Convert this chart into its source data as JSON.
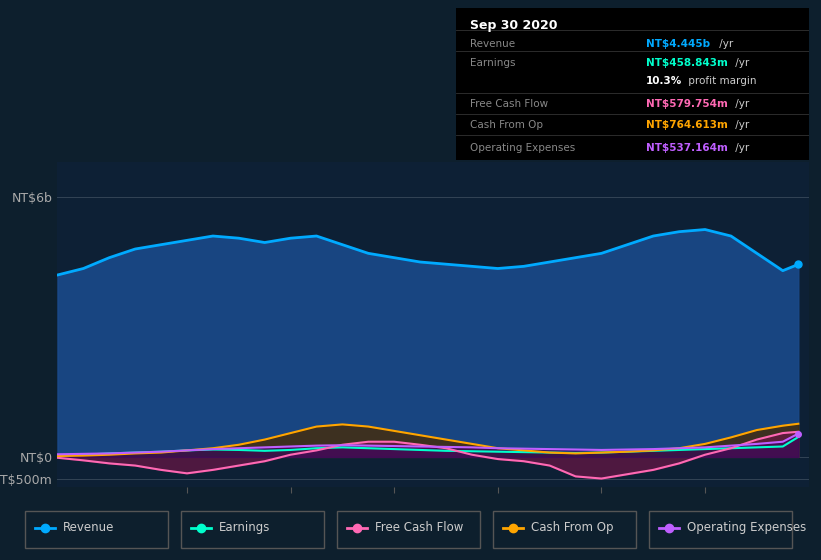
{
  "background_color": "#0d1f2d",
  "plot_bg_color": "#0d2035",
  "title_box": {
    "date": "Sep 30 2020",
    "bg_color": "#000000",
    "text_color": "#aaaaaa",
    "title_color": "#ffffff"
  },
  "y_labels": [
    "NT$6b",
    "NT$0",
    "-NT$500m"
  ],
  "y_ticks": [
    6000,
    0,
    -500
  ],
  "ylim": [
    -700,
    6800
  ],
  "x_ticks": [
    2015,
    2016,
    2017,
    2018,
    2019,
    2020
  ],
  "xlim_start": 2013.75,
  "xlim_end": 2021.0,
  "legend": [
    {
      "label": "Revenue",
      "color": "#00aaff"
    },
    {
      "label": "Earnings",
      "color": "#00ffcc"
    },
    {
      "label": "Free Cash Flow",
      "color": "#ff69b4"
    },
    {
      "label": "Cash From Op",
      "color": "#ffa500"
    },
    {
      "label": "Operating Expenses",
      "color": "#bf5fff"
    }
  ],
  "revenue": {
    "x": [
      2013.75,
      2014.0,
      2014.25,
      2014.5,
      2014.75,
      2015.0,
      2015.25,
      2015.5,
      2015.75,
      2016.0,
      2016.25,
      2016.5,
      2016.75,
      2017.0,
      2017.25,
      2017.5,
      2017.75,
      2018.0,
      2018.25,
      2018.5,
      2018.75,
      2019.0,
      2019.25,
      2019.5,
      2019.75,
      2020.0,
      2020.25,
      2020.5,
      2020.75,
      2020.9
    ],
    "y": [
      4200,
      4350,
      4600,
      4800,
      4900,
      5000,
      5100,
      5050,
      4950,
      5050,
      5100,
      4900,
      4700,
      4600,
      4500,
      4450,
      4400,
      4350,
      4400,
      4500,
      4600,
      4700,
      4900,
      5100,
      5200,
      5250,
      5100,
      4700,
      4300,
      4445
    ],
    "color": "#00aaff",
    "linewidth": 2.0
  },
  "earnings": {
    "x": [
      2013.75,
      2014.0,
      2014.25,
      2014.5,
      2014.75,
      2015.0,
      2015.25,
      2015.5,
      2015.75,
      2016.0,
      2016.25,
      2016.5,
      2016.75,
      2017.0,
      2017.25,
      2017.5,
      2017.75,
      2018.0,
      2018.25,
      2018.5,
      2018.75,
      2019.0,
      2019.25,
      2019.5,
      2019.75,
      2020.0,
      2020.25,
      2020.5,
      2020.75,
      2020.9
    ],
    "y": [
      30,
      50,
      80,
      100,
      120,
      150,
      170,
      160,
      140,
      160,
      200,
      220,
      200,
      180,
      160,
      140,
      130,
      120,
      110,
      100,
      90,
      100,
      120,
      140,
      160,
      180,
      200,
      220,
      240,
      459
    ],
    "color": "#00ffcc",
    "linewidth": 1.5
  },
  "free_cash_flow": {
    "x": [
      2013.75,
      2014.0,
      2014.25,
      2014.5,
      2014.75,
      2015.0,
      2015.25,
      2015.5,
      2015.75,
      2016.0,
      2016.25,
      2016.5,
      2016.75,
      2017.0,
      2017.25,
      2017.5,
      2017.75,
      2018.0,
      2018.25,
      2018.5,
      2018.75,
      2019.0,
      2019.25,
      2019.5,
      2019.75,
      2020.0,
      2020.25,
      2020.5,
      2020.75,
      2020.9
    ],
    "y": [
      -20,
      -80,
      -150,
      -200,
      -300,
      -380,
      -300,
      -200,
      -100,
      50,
      150,
      280,
      350,
      350,
      280,
      200,
      50,
      -50,
      -100,
      -200,
      -450,
      -500,
      -400,
      -300,
      -150,
      50,
      200,
      400,
      550,
      580
    ],
    "color": "#ff69b4",
    "linewidth": 1.5
  },
  "cash_from_op": {
    "x": [
      2013.75,
      2014.0,
      2014.25,
      2014.5,
      2014.75,
      2015.0,
      2015.25,
      2015.5,
      2015.75,
      2016.0,
      2016.25,
      2016.5,
      2016.75,
      2017.0,
      2017.25,
      2017.5,
      2017.75,
      2018.0,
      2018.25,
      2018.5,
      2018.75,
      2019.0,
      2019.25,
      2019.5,
      2019.75,
      2020.0,
      2020.25,
      2020.5,
      2020.75,
      2020.9
    ],
    "y": [
      20,
      30,
      50,
      80,
      100,
      150,
      200,
      280,
      400,
      550,
      700,
      750,
      700,
      600,
      500,
      400,
      300,
      200,
      150,
      100,
      80,
      100,
      120,
      150,
      200,
      300,
      450,
      620,
      720,
      765
    ],
    "color": "#ffa500",
    "linewidth": 1.5
  },
  "operating_expenses": {
    "x": [
      2013.75,
      2014.0,
      2014.25,
      2014.5,
      2014.75,
      2015.0,
      2015.25,
      2015.5,
      2015.75,
      2016.0,
      2016.25,
      2016.5,
      2016.75,
      2017.0,
      2017.25,
      2017.5,
      2017.75,
      2018.0,
      2018.25,
      2018.5,
      2018.75,
      2019.0,
      2019.25,
      2019.5,
      2019.75,
      2020.0,
      2020.25,
      2020.5,
      2020.75,
      2020.9
    ],
    "y": [
      60,
      70,
      80,
      100,
      120,
      150,
      180,
      200,
      220,
      240,
      260,
      270,
      260,
      250,
      240,
      230,
      220,
      200,
      190,
      180,
      170,
      160,
      170,
      180,
      200,
      220,
      260,
      300,
      350,
      537
    ],
    "color": "#bf5fff",
    "linewidth": 1.5
  }
}
